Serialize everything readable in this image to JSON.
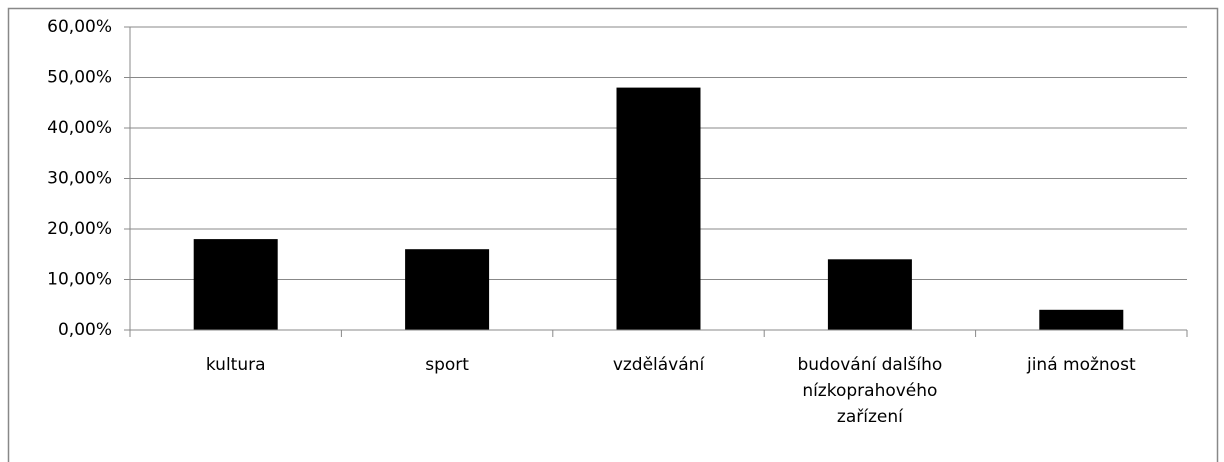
{
  "chart_data": {
    "type": "bar",
    "categories": [
      "kultura",
      "sport",
      "vzdělávání",
      "budování dalšího nízkoprahového zařízení",
      "jiná možnost"
    ],
    "values": [
      18,
      16,
      48,
      14,
      4
    ],
    "color": "#000000",
    "ylim": [
      0,
      60
    ],
    "yticks": [
      {
        "value": 0,
        "label": "0,00%"
      },
      {
        "value": 10,
        "label": "10,00%"
      },
      {
        "value": 20,
        "label": "20,00%"
      },
      {
        "value": 30,
        "label": "30,00%"
      },
      {
        "value": 40,
        "label": "40,00%"
      },
      {
        "value": 50,
        "label": "50,00%"
      },
      {
        "value": 60,
        "label": "60,00%"
      }
    ],
    "grid": true
  }
}
